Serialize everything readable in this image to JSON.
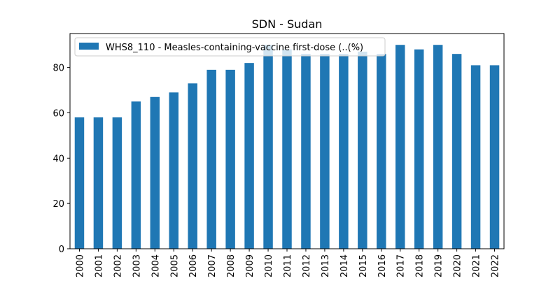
{
  "chart_data": {
    "type": "bar",
    "title": "SDN - Sudan",
    "xlabel": "",
    "ylabel": "",
    "categories": [
      "2000",
      "2001",
      "2002",
      "2003",
      "2004",
      "2005",
      "2006",
      "2007",
      "2008",
      "2009",
      "2010",
      "2011",
      "2012",
      "2013",
      "2014",
      "2015",
      "2016",
      "2017",
      "2018",
      "2019",
      "2020",
      "2021",
      "2022"
    ],
    "series": [
      {
        "name": "WHS8_110 - Measles-containing-vaccine first-dose (..(%)",
        "color": "#1f77b4",
        "values": [
          58,
          58,
          58,
          65,
          67,
          69,
          73,
          79,
          79,
          82,
          90,
          88,
          86,
          86,
          86,
          87,
          86,
          90,
          88,
          90,
          86,
          81,
          81
        ]
      }
    ],
    "ylim": [
      0,
      95
    ],
    "yticks": [
      0,
      20,
      40,
      60,
      80
    ],
    "grid": false,
    "legend_position": "top-left"
  }
}
